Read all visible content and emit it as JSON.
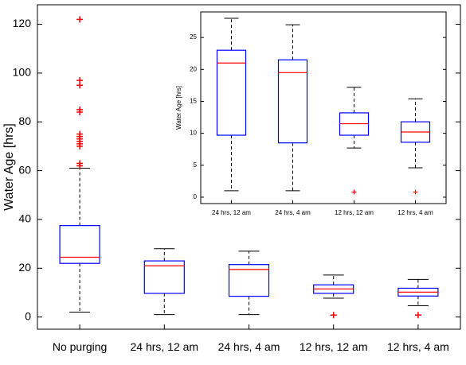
{
  "chart_data": [
    {
      "id": "main",
      "type": "box",
      "ylabel": "Water Age [hrs]",
      "xlabel": "",
      "title": "",
      "ylim": [
        -5,
        128
      ],
      "yticks": [
        0,
        20,
        40,
        60,
        80,
        100,
        120
      ],
      "grid": false,
      "categories": [
        "No purging",
        "24 hrs, 12 am",
        "24 hrs, 4 am",
        "12 hrs, 12 am",
        "12 hrs, 4 am"
      ],
      "boxes": [
        {
          "category": "No purging",
          "whisker_low": 2,
          "q1": 22,
          "median": 24.5,
          "q3": 37.5,
          "whisker_high": 61,
          "outliers": [
            62,
            63,
            70,
            71,
            72,
            73,
            74,
            75,
            84,
            85,
            95,
            97,
            122
          ]
        },
        {
          "category": "24 hrs, 12 am",
          "whisker_low": 1,
          "q1": 9.7,
          "median": 21,
          "q3": 23,
          "whisker_high": 28,
          "outliers": []
        },
        {
          "category": "24 hrs, 4 am",
          "whisker_low": 1,
          "q1": 8.5,
          "median": 19.5,
          "q3": 21.5,
          "whisker_high": 27,
          "outliers": []
        },
        {
          "category": "12 hrs, 12 am",
          "whisker_low": 7.7,
          "q1": 9.7,
          "median": 11.5,
          "q3": 13.2,
          "whisker_high": 17.2,
          "outliers": [
            0.8
          ]
        },
        {
          "category": "12 hrs, 4 am",
          "whisker_low": 4.6,
          "q1": 8.6,
          "median": 10.2,
          "q3": 11.8,
          "whisker_high": 15.4,
          "outliers": [
            0.8
          ]
        }
      ]
    },
    {
      "id": "inset",
      "type": "box",
      "ylabel": "Water Age [hrs]",
      "xlabel": "",
      "title": "",
      "ylim": [
        -1,
        29
      ],
      "yticks": [
        0,
        5,
        10,
        15,
        20,
        25
      ],
      "grid": false,
      "categories": [
        "24 hrs, 12 am",
        "24 hrs, 4 am",
        "12 hrs, 12 am",
        "12 hrs, 4 am"
      ],
      "boxes": [
        {
          "category": "24 hrs, 12 am",
          "whisker_low": 1,
          "q1": 9.7,
          "median": 21,
          "q3": 23,
          "whisker_high": 28,
          "outliers": []
        },
        {
          "category": "24 hrs, 4 am",
          "whisker_low": 1,
          "q1": 8.5,
          "median": 19.5,
          "q3": 21.5,
          "whisker_high": 27,
          "outliers": []
        },
        {
          "category": "12 hrs, 12 am",
          "whisker_low": 7.7,
          "q1": 9.7,
          "median": 11.5,
          "q3": 13.2,
          "whisker_high": 17.2,
          "outliers": [
            0.8
          ]
        },
        {
          "category": "12 hrs, 4 am",
          "whisker_low": 4.6,
          "q1": 8.6,
          "median": 10.2,
          "q3": 11.8,
          "whisker_high": 15.4,
          "outliers": [
            0.8
          ]
        }
      ]
    }
  ],
  "colors": {
    "box": "#0000ff",
    "median": "#ff0000",
    "outlier": "#ff0000",
    "whisker": "#000000",
    "axes": "#000000"
  }
}
